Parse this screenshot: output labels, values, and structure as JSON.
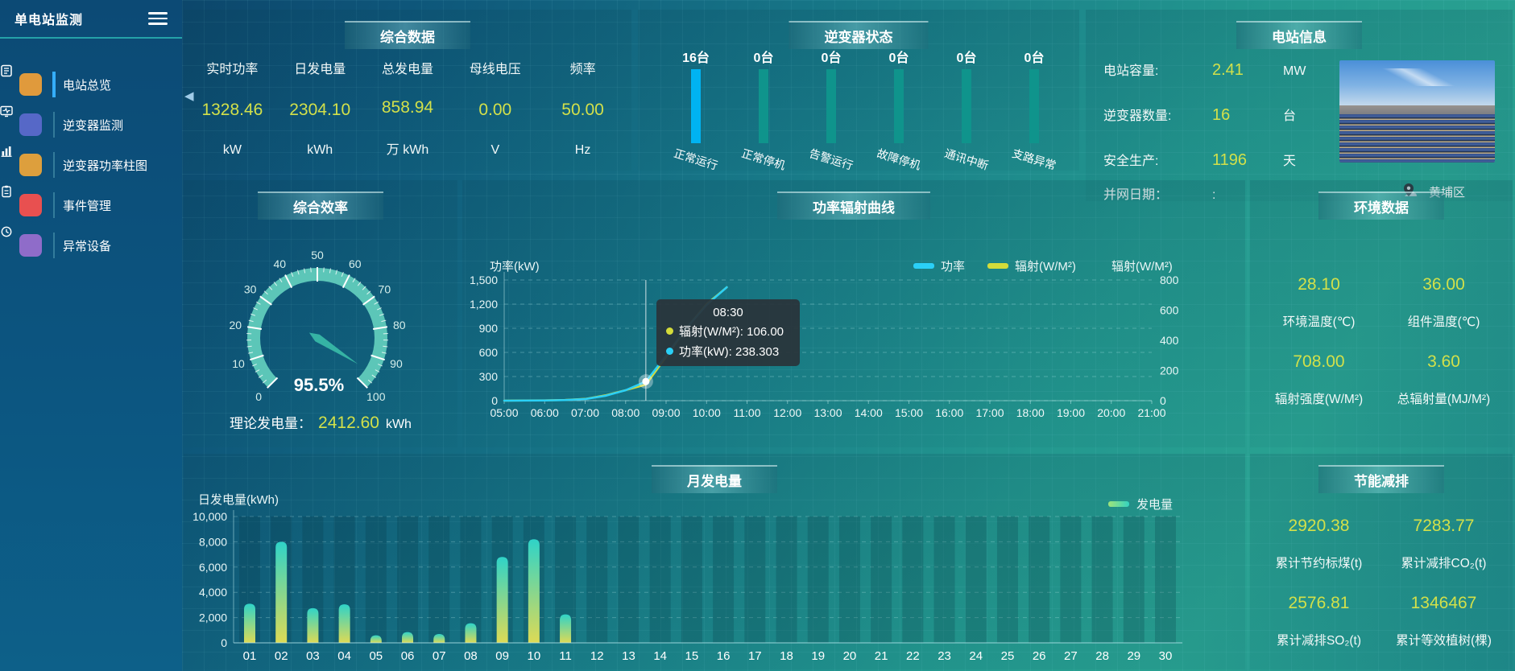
{
  "sidebar": {
    "title": "单电站监测",
    "items": [
      {
        "label": "电站总览",
        "icon": "overview-icon",
        "color": "#e09a3c",
        "active": true
      },
      {
        "label": "逆变器监测",
        "icon": "inverter-monitor-icon",
        "color": "#5668c7",
        "active": false
      },
      {
        "label": "逆变器功率柱图",
        "icon": "inverter-power-bars-icon",
        "color": "#dd9f3d",
        "active": false
      },
      {
        "label": "事件管理",
        "icon": "event-management-icon",
        "color": "#e85050",
        "active": false
      },
      {
        "label": "异常设备",
        "icon": "abnormal-device-icon",
        "color": "#8f6cc9",
        "active": false
      }
    ]
  },
  "theme": {
    "value_color": "#d2e04a",
    "accent_blue": "#00b3f2",
    "teal": "#0f948c"
  },
  "panels": {
    "summary": {
      "title": "综合数据",
      "metrics": [
        {
          "label": "实时功率",
          "value": "1328.46",
          "unit": "kW"
        },
        {
          "label": "日发电量",
          "value": "2304.10",
          "unit": "kWh"
        },
        {
          "label": "总发电量",
          "value": "858.94",
          "unit": "万 kWh"
        },
        {
          "label": "母线电压",
          "value": "0.00",
          "unit": "V"
        },
        {
          "label": "频率",
          "value": "50.00",
          "unit": "Hz"
        }
      ]
    },
    "inverter_status": {
      "title": "逆变器状态",
      "items": [
        {
          "count": "16台",
          "label": "正常运行",
          "highlight": true
        },
        {
          "count": "0台",
          "label": "正常停机",
          "highlight": false
        },
        {
          "count": "0台",
          "label": "告警运行",
          "highlight": false
        },
        {
          "count": "0台",
          "label": "故障停机",
          "highlight": false
        },
        {
          "count": "0台",
          "label": "通讯中断",
          "highlight": false
        },
        {
          "count": "0台",
          "label": "支路异常",
          "highlight": false
        }
      ]
    },
    "station_info": {
      "title": "电站信息",
      "rows": [
        {
          "label": "电站容量:",
          "value": "2.41",
          "unit": "MW"
        },
        {
          "label": "逆变器数量:",
          "value": "16",
          "unit": "台"
        },
        {
          "label": "安全生产:",
          "value": "1196",
          "unit": "天"
        },
        {
          "label": "并网日期：",
          "value": ":",
          "unit": ""
        }
      ],
      "location": "黄埔区"
    },
    "efficiency": {
      "title": "综合效率",
      "theory_label": "理论发电量：",
      "theory_value": "2412.60",
      "theory_unit": "kWh"
    },
    "power_curve": {
      "title": "功率辐射曲线"
    },
    "environment": {
      "title": "环境数据",
      "items": [
        {
          "value": "28.10",
          "label": "环境温度(℃)"
        },
        {
          "value": "36.00",
          "label": "组件温度(℃)"
        },
        {
          "value": "708.00",
          "label": "辐射强度(W/M²)"
        },
        {
          "value": "3.60",
          "label": "总辐射量(MJ/M²)"
        }
      ]
    },
    "monthly": {
      "title": "月发电量"
    },
    "saving": {
      "title": "节能减排",
      "items": [
        {
          "value": "2920.38",
          "label": "累计节约标煤(t)"
        },
        {
          "value": "7283.77",
          "label": "累计减排CO₂(t)"
        },
        {
          "value": "2576.81",
          "label": "累计减排SO₂(t)"
        },
        {
          "value": "1346467",
          "label": "累计等效植树(棵)"
        }
      ]
    }
  },
  "chart_data": [
    {
      "type": "gauge",
      "title": "综合效率",
      "value": 95.5,
      "label": "95.5%",
      "min": 0,
      "max": 100,
      "major_tick": 10,
      "band_color": "#5cc6b8",
      "needle_color": "#35b3a4",
      "tick_label_color": "#d6efeb"
    },
    {
      "type": "line",
      "title": "功率辐射曲线",
      "x_ticks": [
        "05:00",
        "06:00",
        "07:00",
        "08:00",
        "09:00",
        "10:00",
        "11:00",
        "12:00",
        "13:00",
        "14:00",
        "15:00",
        "16:00",
        "17:00",
        "18:00",
        "19:00",
        "20:00",
        "21:00"
      ],
      "left_axis": {
        "name": "功率(kW)",
        "min": 0,
        "max": 1500,
        "ticks": [
          "0",
          "300",
          "600",
          "900",
          "1,200",
          "1,500"
        ]
      },
      "right_axis": {
        "name": "辐射(W/M²)",
        "min": 0,
        "max": 800,
        "ticks": [
          "0",
          "200",
          "400",
          "600",
          "800"
        ]
      },
      "series": [
        {
          "name": "辐射(W/M²)",
          "color": "#d4dc3a",
          "axis": "right",
          "x": [
            5,
            5.5,
            6,
            6.5,
            7,
            7.5,
            8,
            8.5,
            9,
            9.5,
            10,
            10.5
          ],
          "values": [
            0,
            1,
            2,
            5,
            12,
            35,
            70,
            106,
            290,
            480,
            640,
            752
          ]
        },
        {
          "name": "功率",
          "color": "#2ad0f7",
          "axis": "left",
          "x": [
            5,
            5.5,
            6,
            6.5,
            7,
            7.5,
            8,
            8.5,
            9,
            9.5,
            10,
            10.5
          ],
          "values": [
            0,
            1,
            3,
            8,
            20,
            60,
            130,
            238.3,
            560,
            900,
            1190,
            1410
          ]
        }
      ],
      "legend": [
        {
          "name": "功率",
          "color": "#2ad0f7"
        },
        {
          "name": "辐射(W/M²)",
          "color": "#d4dc3a"
        }
      ],
      "hover": {
        "time": "08:30",
        "x_hour": 8.5,
        "items": [
          {
            "text": "辐射(W/M²): 106.00",
            "color": "#d4dc3a"
          },
          {
            "text": "功率(kW): 238.303",
            "color": "#2ad0f7"
          }
        ]
      }
    },
    {
      "type": "bar",
      "title": "月发电量",
      "ylabel": "日发电量(kWh)",
      "legend": "发电量",
      "categories": [
        "01",
        "02",
        "03",
        "04",
        "05",
        "06",
        "07",
        "08",
        "09",
        "10",
        "11",
        "12",
        "13",
        "14",
        "15",
        "16",
        "17",
        "18",
        "19",
        "20",
        "21",
        "22",
        "23",
        "24",
        "25",
        "26",
        "27",
        "28",
        "29",
        "30"
      ],
      "values": [
        3100,
        8000,
        2750,
        3050,
        600,
        850,
        700,
        1550,
        6800,
        8200,
        2250,
        0,
        0,
        0,
        0,
        0,
        0,
        0,
        0,
        0,
        0,
        0,
        0,
        0,
        0,
        0,
        0,
        0,
        0,
        0
      ],
      "ylim": [
        0,
        10000
      ],
      "yticks": [
        "0",
        "2,000",
        "4,000",
        "6,000",
        "8,000",
        "10,000"
      ]
    },
    {
      "type": "bar",
      "title": "逆变器状态",
      "categories": [
        "正常运行",
        "正常停机",
        "告警运行",
        "故障停机",
        "通讯中断",
        "支路异常"
      ],
      "values": [
        16,
        0,
        0,
        0,
        0,
        0
      ],
      "unit": "台"
    }
  ]
}
